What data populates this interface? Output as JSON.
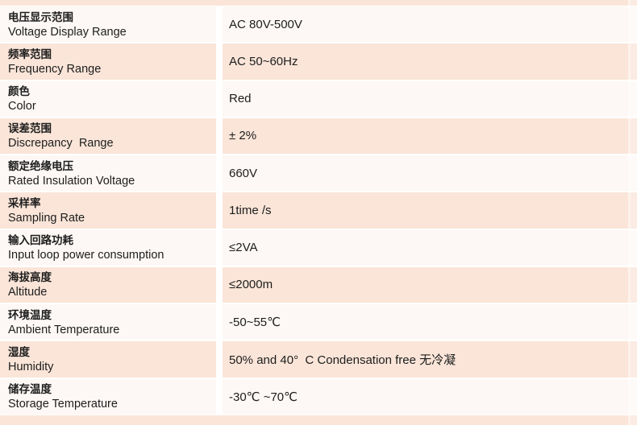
{
  "table": {
    "kind": "product-specification-table",
    "columns": {
      "label": "parameter (zh + en)",
      "value": "specification value"
    },
    "rows": [
      {
        "zh": "电压显示范围",
        "en": "Voltage Display Range",
        "value": "AC 80V-500V"
      },
      {
        "zh": "频率范围",
        "en": "Frequency Range",
        "value": "AC 50~60Hz"
      },
      {
        "zh": "颜色",
        "en": "Color",
        "value": "Red"
      },
      {
        "zh": "误差范围",
        "en": "Discrepancy  Range",
        "value": "± 2%"
      },
      {
        "zh": "额定绝缘电压",
        "en": "Rated Insulation Voltage",
        "value": "660V"
      },
      {
        "zh": "采样率",
        "en": "Sampling Rate",
        "value": "1time /s"
      },
      {
        "zh": "输入回路功耗",
        "en": "Input loop power consumption",
        "value": "≤2VA"
      },
      {
        "zh": "海拔高度",
        "en": "Altitude",
        "value": "≤2000m"
      },
      {
        "zh": "环境温度",
        "en": "Ambient Temperature",
        "value": "-50~55℃"
      },
      {
        "zh": "湿度",
        "en": "Humidity",
        "value": "50% and 40°  C Condensation free 无冷凝"
      },
      {
        "zh": "储存温度",
        "en": "Storage Temperature",
        "value": "-30℃ ~70℃"
      }
    ]
  },
  "colors": {
    "row_light": "#fdf8f5",
    "row_pink": "#fae5d8",
    "divider": "#ffffff",
    "text": "#1d1d1d"
  }
}
